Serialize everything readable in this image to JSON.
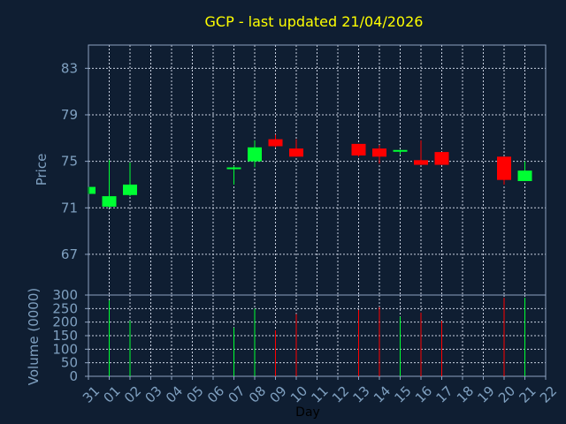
{
  "chart_data": {
    "type": "candlestick",
    "title": "GCP - last updated 21/04/2026",
    "colors": {
      "up": "#00ff33",
      "down": "#ff0000",
      "background": "#0f1e32",
      "text": "#7fa0c0",
      "title": "#ffff00"
    },
    "grid": true,
    "x": {
      "label": "Day",
      "ticks": [
        "31",
        "01",
        "02",
        "03",
        "04",
        "05",
        "06",
        "07",
        "08",
        "09",
        "10",
        "11",
        "12",
        "13",
        "14",
        "15",
        "16",
        "17",
        "18",
        "19",
        "20",
        "21",
        "22"
      ]
    },
    "price": {
      "label": "Price",
      "ylim": [
        63.5,
        85
      ],
      "ticks": [
        67,
        71,
        75,
        79,
        83
      ],
      "candles": [
        {
          "day": 0,
          "open": 72.2,
          "high": 72.8,
          "low": 72.2,
          "close": 72.8
        },
        {
          "day": 1,
          "open": 71.1,
          "high": 75.1,
          "low": 71.0,
          "close": 72.0
        },
        {
          "day": 2,
          "open": 72.1,
          "high": 74.9,
          "low": 72.0,
          "close": 73.0
        },
        {
          "day": 7,
          "open": 74.3,
          "high": 74.6,
          "low": 73.0,
          "close": 74.4
        },
        {
          "day": 8,
          "open": 75.0,
          "high": 76.8,
          "low": 74.5,
          "close": 76.2
        },
        {
          "day": 9,
          "open": 76.9,
          "high": 77.3,
          "low": 76.2,
          "close": 76.3
        },
        {
          "day": 10,
          "open": 76.1,
          "high": 76.9,
          "low": 75.4,
          "close": 75.4
        },
        {
          "day": 13,
          "open": 76.5,
          "high": 76.5,
          "low": 75.4,
          "close": 75.5
        },
        {
          "day": 14,
          "open": 76.1,
          "high": 76.4,
          "low": 74.8,
          "close": 75.4
        },
        {
          "day": 15,
          "open": 75.8,
          "high": 76.0,
          "low": 75.6,
          "close": 75.9
        },
        {
          "day": 16,
          "open": 75.1,
          "high": 76.8,
          "low": 74.7,
          "close": 74.7
        },
        {
          "day": 17,
          "open": 75.8,
          "high": 75.8,
          "low": 74.7,
          "close": 74.7
        },
        {
          "day": 20,
          "open": 75.4,
          "high": 75.4,
          "low": 73.0,
          "close": 73.4
        },
        {
          "day": 21,
          "open": 73.3,
          "high": 75.0,
          "low": 73.3,
          "close": 74.2
        }
      ]
    },
    "volume": {
      "label": "Volume (0000)",
      "ylim": [
        0,
        300
      ],
      "ticks": [
        0,
        50,
        100,
        150,
        200,
        250,
        300
      ],
      "bars": [
        {
          "day": 1,
          "value": 280,
          "up": true
        },
        {
          "day": 2,
          "value": 205,
          "up": true
        },
        {
          "day": 7,
          "value": 180,
          "up": true
        },
        {
          "day": 8,
          "value": 250,
          "up": true
        },
        {
          "day": 9,
          "value": 170,
          "up": false
        },
        {
          "day": 10,
          "value": 230,
          "up": false
        },
        {
          "day": 13,
          "value": 245,
          "up": false
        },
        {
          "day": 14,
          "value": 255,
          "up": false
        },
        {
          "day": 15,
          "value": 220,
          "up": true
        },
        {
          "day": 16,
          "value": 235,
          "up": false
        },
        {
          "day": 17,
          "value": 205,
          "up": false
        },
        {
          "day": 20,
          "value": 290,
          "up": false
        },
        {
          "day": 21,
          "value": 290,
          "up": true
        }
      ]
    }
  }
}
